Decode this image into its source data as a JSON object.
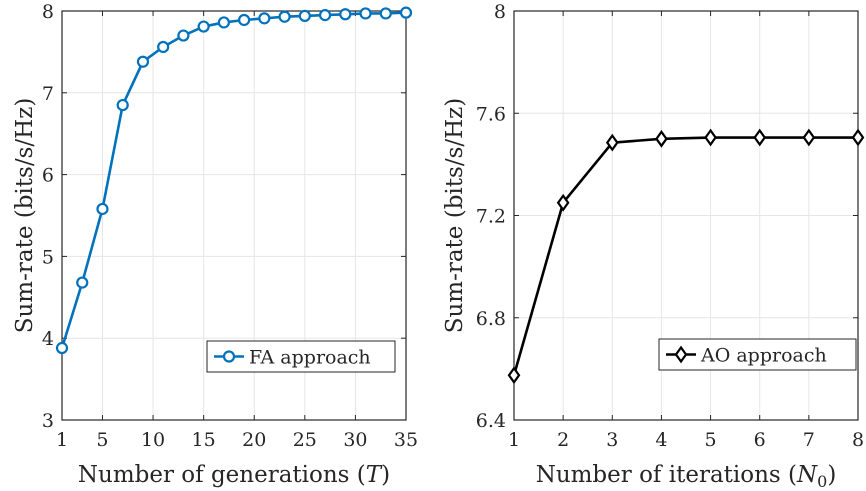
{
  "chart_data": [
    {
      "type": "line",
      "title": "",
      "xlabel": "Number of generations (T)",
      "xlabel_parts": {
        "text": "Number of generations (",
        "var": "T",
        "close": ")"
      },
      "ylabel": "Sum-rate (bits/s/Hz)",
      "xlim": [
        1,
        35
      ],
      "ylim": [
        3,
        8
      ],
      "xticks": [
        1,
        5,
        10,
        15,
        20,
        25,
        30,
        35
      ],
      "yticks": [
        3,
        4,
        5,
        6,
        7,
        8
      ],
      "xtick_labels": [
        "1",
        "5",
        "10",
        "15",
        "20",
        "25",
        "30",
        "35"
      ],
      "ytick_labels": [
        "3",
        "4",
        "5",
        "6",
        "7",
        "8"
      ],
      "grid": true,
      "legend_position": "bottom-right",
      "series": [
        {
          "name": "FA approach",
          "color": "#0072BD",
          "marker": "circle",
          "x": [
            1,
            3,
            5,
            7,
            9,
            11,
            13,
            15,
            17,
            19,
            21,
            23,
            25,
            27,
            29,
            31,
            33,
            35
          ],
          "values": [
            3.88,
            4.68,
            5.58,
            6.85,
            7.38,
            7.56,
            7.7,
            7.81,
            7.86,
            7.89,
            7.91,
            7.93,
            7.94,
            7.95,
            7.96,
            7.97,
            7.97,
            7.98
          ]
        }
      ]
    },
    {
      "type": "line",
      "title": "",
      "xlabel": "Number of iterations (N0)",
      "xlabel_parts": {
        "text": "Number of iterations (",
        "var": "N",
        "sub": "0",
        "close": ")"
      },
      "ylabel": "Sum-rate (bits/s/Hz)",
      "xlim": [
        1,
        8
      ],
      "ylim": [
        6.4,
        8
      ],
      "xticks": [
        1,
        2,
        3,
        4,
        5,
        6,
        7,
        8
      ],
      "yticks": [
        6.4,
        6.8,
        7.2,
        7.6,
        8
      ],
      "xtick_labels": [
        "1",
        "2",
        "3",
        "4",
        "5",
        "6",
        "7",
        "8"
      ],
      "ytick_labels": [
        "6.4",
        "6.8",
        "7.2",
        "7.6",
        "8"
      ],
      "grid": true,
      "legend_position": "bottom-right",
      "series": [
        {
          "name": "AO approach",
          "color": "#000000",
          "marker": "diamond",
          "x": [
            1,
            2,
            3,
            4,
            5,
            6,
            7,
            8
          ],
          "values": [
            6.575,
            7.25,
            7.485,
            7.5,
            7.505,
            7.505,
            7.505,
            7.505
          ]
        }
      ]
    }
  ]
}
